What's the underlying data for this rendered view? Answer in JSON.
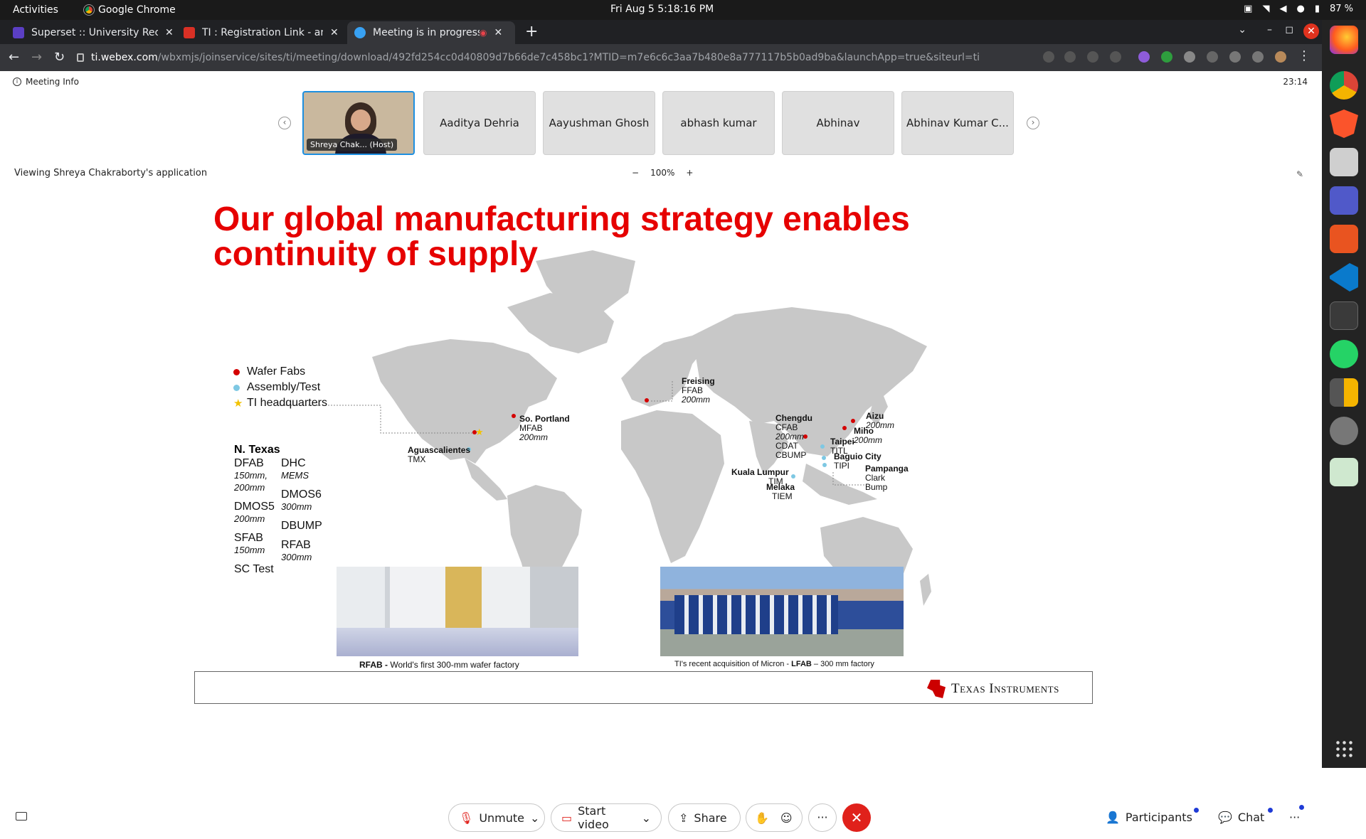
{
  "topbar": {
    "activities": "Activities",
    "app_name": "Google Chrome",
    "clock": "Fri Aug 5   5:18:16 PM",
    "battery": "87 %"
  },
  "tabs": [
    {
      "title": "Superset :: University Rec",
      "favicon_color": "#5b3fc4",
      "active": false
    },
    {
      "title": "TI : Registration Link - ani",
      "favicon_color": "#d93025",
      "active": false
    },
    {
      "title": "Meeting is in progress",
      "favicon_color": "#38a1f3",
      "active": true
    }
  ],
  "omnibox": {
    "host": "ti.webex.com",
    "path": "/wbxmjs/joinservice/sites/ti/meeting/download/492fd254cc0d40809d7b66de7c458bc1?MTID=m7e6c6c3aa7b480e8a777117b5b0ad9ba&launchApp=true&siteurl=ti"
  },
  "meeting": {
    "info_label": "Meeting Info",
    "timer": "23:14",
    "viewing_text": "Viewing Shreya Chakraborty's application",
    "zoom": "100%",
    "zoom_minus": "−",
    "zoom_plus": "+",
    "participants": [
      {
        "name": "Shreya Chak...  (Host)",
        "host": true
      },
      {
        "name": "Aaditya Dehria"
      },
      {
        "name": "Aayushman Ghosh"
      },
      {
        "name": "abhash kumar"
      },
      {
        "name": "Abhinav"
      },
      {
        "name": "Abhinav Kumar C..."
      }
    ]
  },
  "slide": {
    "title_line1": "Our global manufacturing strategy enables",
    "title_line2": "continuity of supply",
    "legend": [
      {
        "label": "Wafer Fabs",
        "color": "#d40000",
        "shape": "dot"
      },
      {
        "label": "Assembly/Test",
        "color": "#7ec8e3",
        "shape": "dot"
      },
      {
        "label": "TI headquarters",
        "color": "#f2c200",
        "shape": "star"
      }
    ],
    "n_texas": "N. Texas",
    "col1": [
      {
        "name": "DFAB",
        "sub": "150mm,"
      },
      {
        "name": "",
        "sub": "200mm"
      },
      {
        "name": "DMOS5",
        "sub": "200mm"
      },
      {
        "name": "SFAB",
        "sub": "150mm"
      },
      {
        "name": "SC Test",
        "sub": ""
      }
    ],
    "col2": [
      {
        "name": "DHC",
        "sub": "MEMS"
      },
      {
        "name": "DMOS6",
        "sub": "300mm"
      },
      {
        "name": "DBUMP",
        "sub": ""
      },
      {
        "name": "RFAB",
        "sub": "300mm"
      }
    ],
    "sites": {
      "freising": {
        "name": "Freising",
        "code": "FFAB",
        "size": "200mm"
      },
      "portland": {
        "name": "So. Portland",
        "code": "MFAB",
        "size": "200mm"
      },
      "aguas": {
        "name": "Aguascalientes",
        "code": "TMX"
      },
      "chengdu": {
        "name": "Chengdu",
        "code": "CFAB",
        "size": "200mm",
        "extra1": "CDAT",
        "extra2": "CBUMP"
      },
      "aizu": {
        "name": "Aizu",
        "size": "200mm"
      },
      "miho": {
        "name": "Miho",
        "size": "200mm"
      },
      "taipei": {
        "name": "Taipei",
        "code": "TITL"
      },
      "baguio": {
        "name": "Baguio City",
        "code": "TIPI"
      },
      "pampanga": {
        "name": "Pampanga",
        "code": "Clark",
        "extra": "Bump"
      },
      "kl": {
        "name": "Kuala Lumpur",
        "code": "TIM"
      },
      "melaka": {
        "name": "Melaka",
        "code": "TIEM"
      }
    },
    "caption1_bold": "RFAB -",
    "caption1_rest": " World's first 300-mm wafer factory",
    "caption2_pre": "TI's recent acquisition of Micron - ",
    "caption2_bold": "LFAB",
    "caption2_rest": " – 300 mm factory",
    "logo_text": "Texas Instruments"
  },
  "controls": {
    "unmute": "Unmute",
    "start_video": "Start video",
    "share": "Share",
    "more": "···",
    "participants": "Participants",
    "chat": "Chat",
    "leave_color": "#e0211b"
  }
}
